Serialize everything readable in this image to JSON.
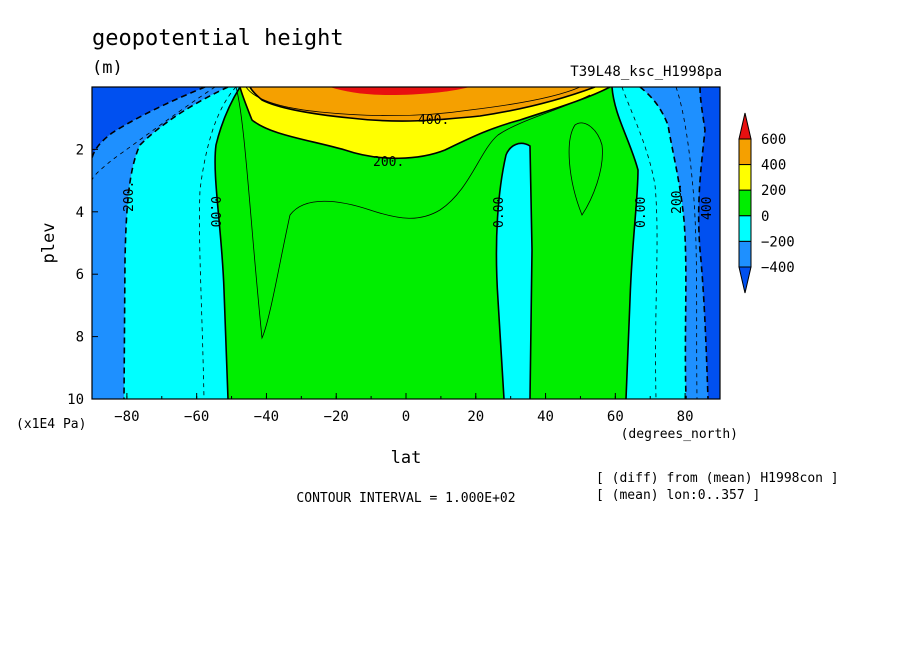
{
  "chart_data": {
    "type": "heatmap",
    "title": "geopotential height",
    "units": "(m)",
    "run_label": "T39L48_ksc_H1998pa",
    "xlabel": "lat",
    "x_units": "(degrees_north)",
    "ylabel": "plev",
    "y_units": "(x1E4 Pa)",
    "xlim": [
      -90,
      90
    ],
    "ylim": [
      0,
      10
    ],
    "y_inverted": true,
    "x_ticks": [
      -80,
      -60,
      -40,
      -20,
      0,
      20,
      40,
      60,
      80
    ],
    "y_ticks": [
      2,
      4,
      6,
      8,
      10
    ],
    "contour_interval_text": "CONTOUR INTERVAL = 1.000E+02",
    "notes": [
      "[ (diff) from (mean) H1998con ]",
      "[ (mean) lon:0..357 ]"
    ],
    "contour_labels": [
      "400.",
      "200.",
      "200.",
      "0.00",
      "0.00",
      "0.00",
      "200.",
      "400"
    ],
    "colorbar": {
      "levels": [
        600,
        400,
        200,
        0,
        -200,
        -400
      ],
      "level_labels": [
        "600",
        "400",
        "200",
        "0",
        "−200",
        "−400"
      ],
      "colors": [
        "#e81010",
        "#f5a000",
        "#ffff00",
        "#00ee00",
        "#00ffff",
        "#1e90ff",
        "#0050f0"
      ]
    },
    "grid": false
  }
}
